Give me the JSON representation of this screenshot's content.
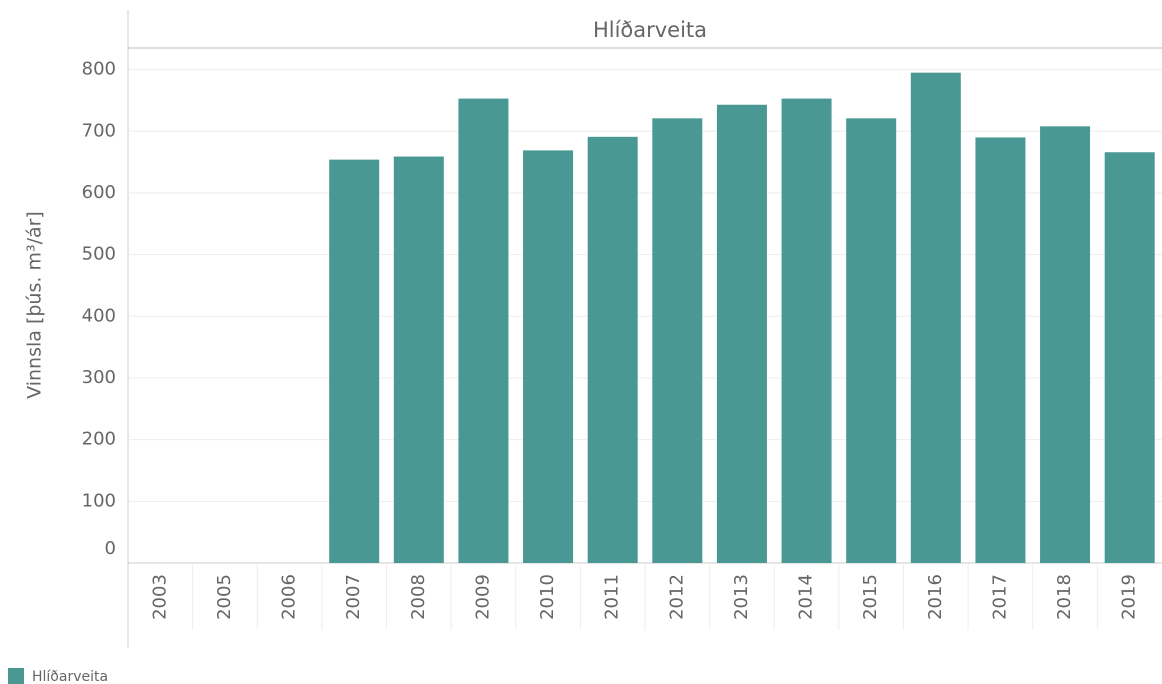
{
  "chart_data": {
    "type": "bar",
    "title": "Hlíðarveita",
    "y_label": "Vinnsla [þús. m³/ár]",
    "categories": [
      "2003",
      "2005",
      "2006",
      "2007",
      "2008",
      "2009",
      "2010",
      "2011",
      "2012",
      "2013",
      "2014",
      "2015",
      "2016",
      "2017",
      "2018",
      "2019"
    ],
    "series": [
      {
        "name": "Hlíðarveita",
        "color": "#4a9894",
        "values": [
          null,
          null,
          null,
          654,
          659,
          753,
          669,
          691,
          721,
          743,
          753,
          721,
          795,
          690,
          708,
          666
        ]
      }
    ],
    "ylim": [
      0,
      835
    ],
    "yticks": [
      0,
      100,
      200,
      300,
      400,
      500,
      600,
      700,
      800
    ],
    "grid": true
  }
}
